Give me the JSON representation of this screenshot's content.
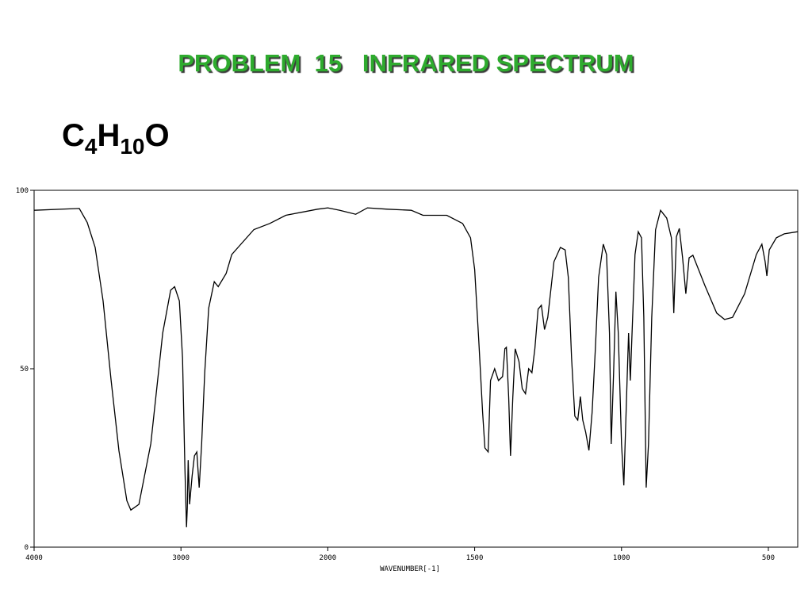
{
  "chart_data": {
    "type": "line",
    "title": "PROBLEM  15   INFRARED SPECTRUM",
    "subtitle": "C4H10O",
    "xlabel": "WAVENUMBER[-1]",
    "xlim": [
      4000,
      400
    ],
    "xticks": [
      4000,
      3000,
      2000,
      1500,
      1000,
      500
    ],
    "ylim": [
      0,
      100
    ],
    "yticks": [
      0,
      50,
      100
    ],
    "color": "#000000",
    "x": [
      4000,
      3692,
      3638,
      3584,
      3530,
      3476,
      3422,
      3368,
      3341,
      3286,
      3205,
      3124,
      3070,
      3043,
      3011,
      2989,
      2973,
      2962,
      2957,
      2951,
      2941,
      2924,
      2908,
      2892,
      2876,
      2859,
      2838,
      2811,
      2773,
      2746,
      2692,
      2654,
      2611,
      2503,
      2395,
      2286,
      2070,
      2000,
      1959,
      1905,
      1865,
      1797,
      1716,
      1676,
      1595,
      1541,
      1514,
      1500,
      1486,
      1473,
      1465,
      1454,
      1446,
      1432,
      1419,
      1405,
      1397,
      1392,
      1384,
      1378,
      1370,
      1362,
      1349,
      1338,
      1327,
      1316,
      1305,
      1295,
      1284,
      1273,
      1262,
      1251,
      1230,
      1208,
      1192,
      1181,
      1170,
      1159,
      1149,
      1140,
      1132,
      1122,
      1111,
      1100,
      1089,
      1078,
      1062,
      1051,
      1041,
      1035,
      1027,
      1019,
      1011,
      1000,
      992,
      981,
      976,
      970,
      965,
      954,
      943,
      932,
      924,
      916,
      908,
      897,
      884,
      867,
      846,
      830,
      822,
      813,
      803,
      792,
      781,
      770,
      757,
      716,
      676,
      649,
      622,
      581,
      541,
      522,
      511,
      505,
      497,
      473,
      446,
      400
    ],
    "values": [
      94.4,
      94.9,
      91,
      84,
      69,
      47,
      27,
      13,
      10.4,
      12,
      29,
      60,
      72,
      73,
      69,
      53,
      22,
      5.6,
      11,
      24.4,
      12,
      20,
      25.6,
      26.7,
      16.7,
      29,
      49,
      67,
      74.4,
      73,
      76.7,
      82,
      84,
      89,
      90.7,
      93,
      94.7,
      95.1,
      94.4,
      93.3,
      95.1,
      94.7,
      94.4,
      93,
      93,
      90.7,
      86.7,
      77.8,
      57.8,
      37.8,
      27.8,
      26.7,
      46.7,
      50,
      46.7,
      47.8,
      55.6,
      56,
      42,
      25.6,
      42,
      55.6,
      52,
      44.4,
      43,
      50,
      48.9,
      55.6,
      66.7,
      67.8,
      61,
      64.4,
      80,
      84,
      83.3,
      75.6,
      53,
      36.7,
      35.6,
      42.2,
      35.6,
      32.2,
      27.1,
      37.8,
      55.6,
      75.6,
      84.9,
      82,
      60,
      28.9,
      48.9,
      71.6,
      60,
      28.9,
      17.3,
      46.7,
      60,
      46.7,
      57.8,
      82,
      88.4,
      86.7,
      64.4,
      16.7,
      28.9,
      64.4,
      88.9,
      94.4,
      92.2,
      86.7,
      65.6,
      87,
      89.3,
      81.1,
      71,
      81.1,
      81.8,
      73.3,
      65.6,
      63.8,
      64.4,
      71,
      82,
      84.9,
      80,
      76,
      83.3,
      86.7,
      87.8,
      88.4
    ]
  }
}
